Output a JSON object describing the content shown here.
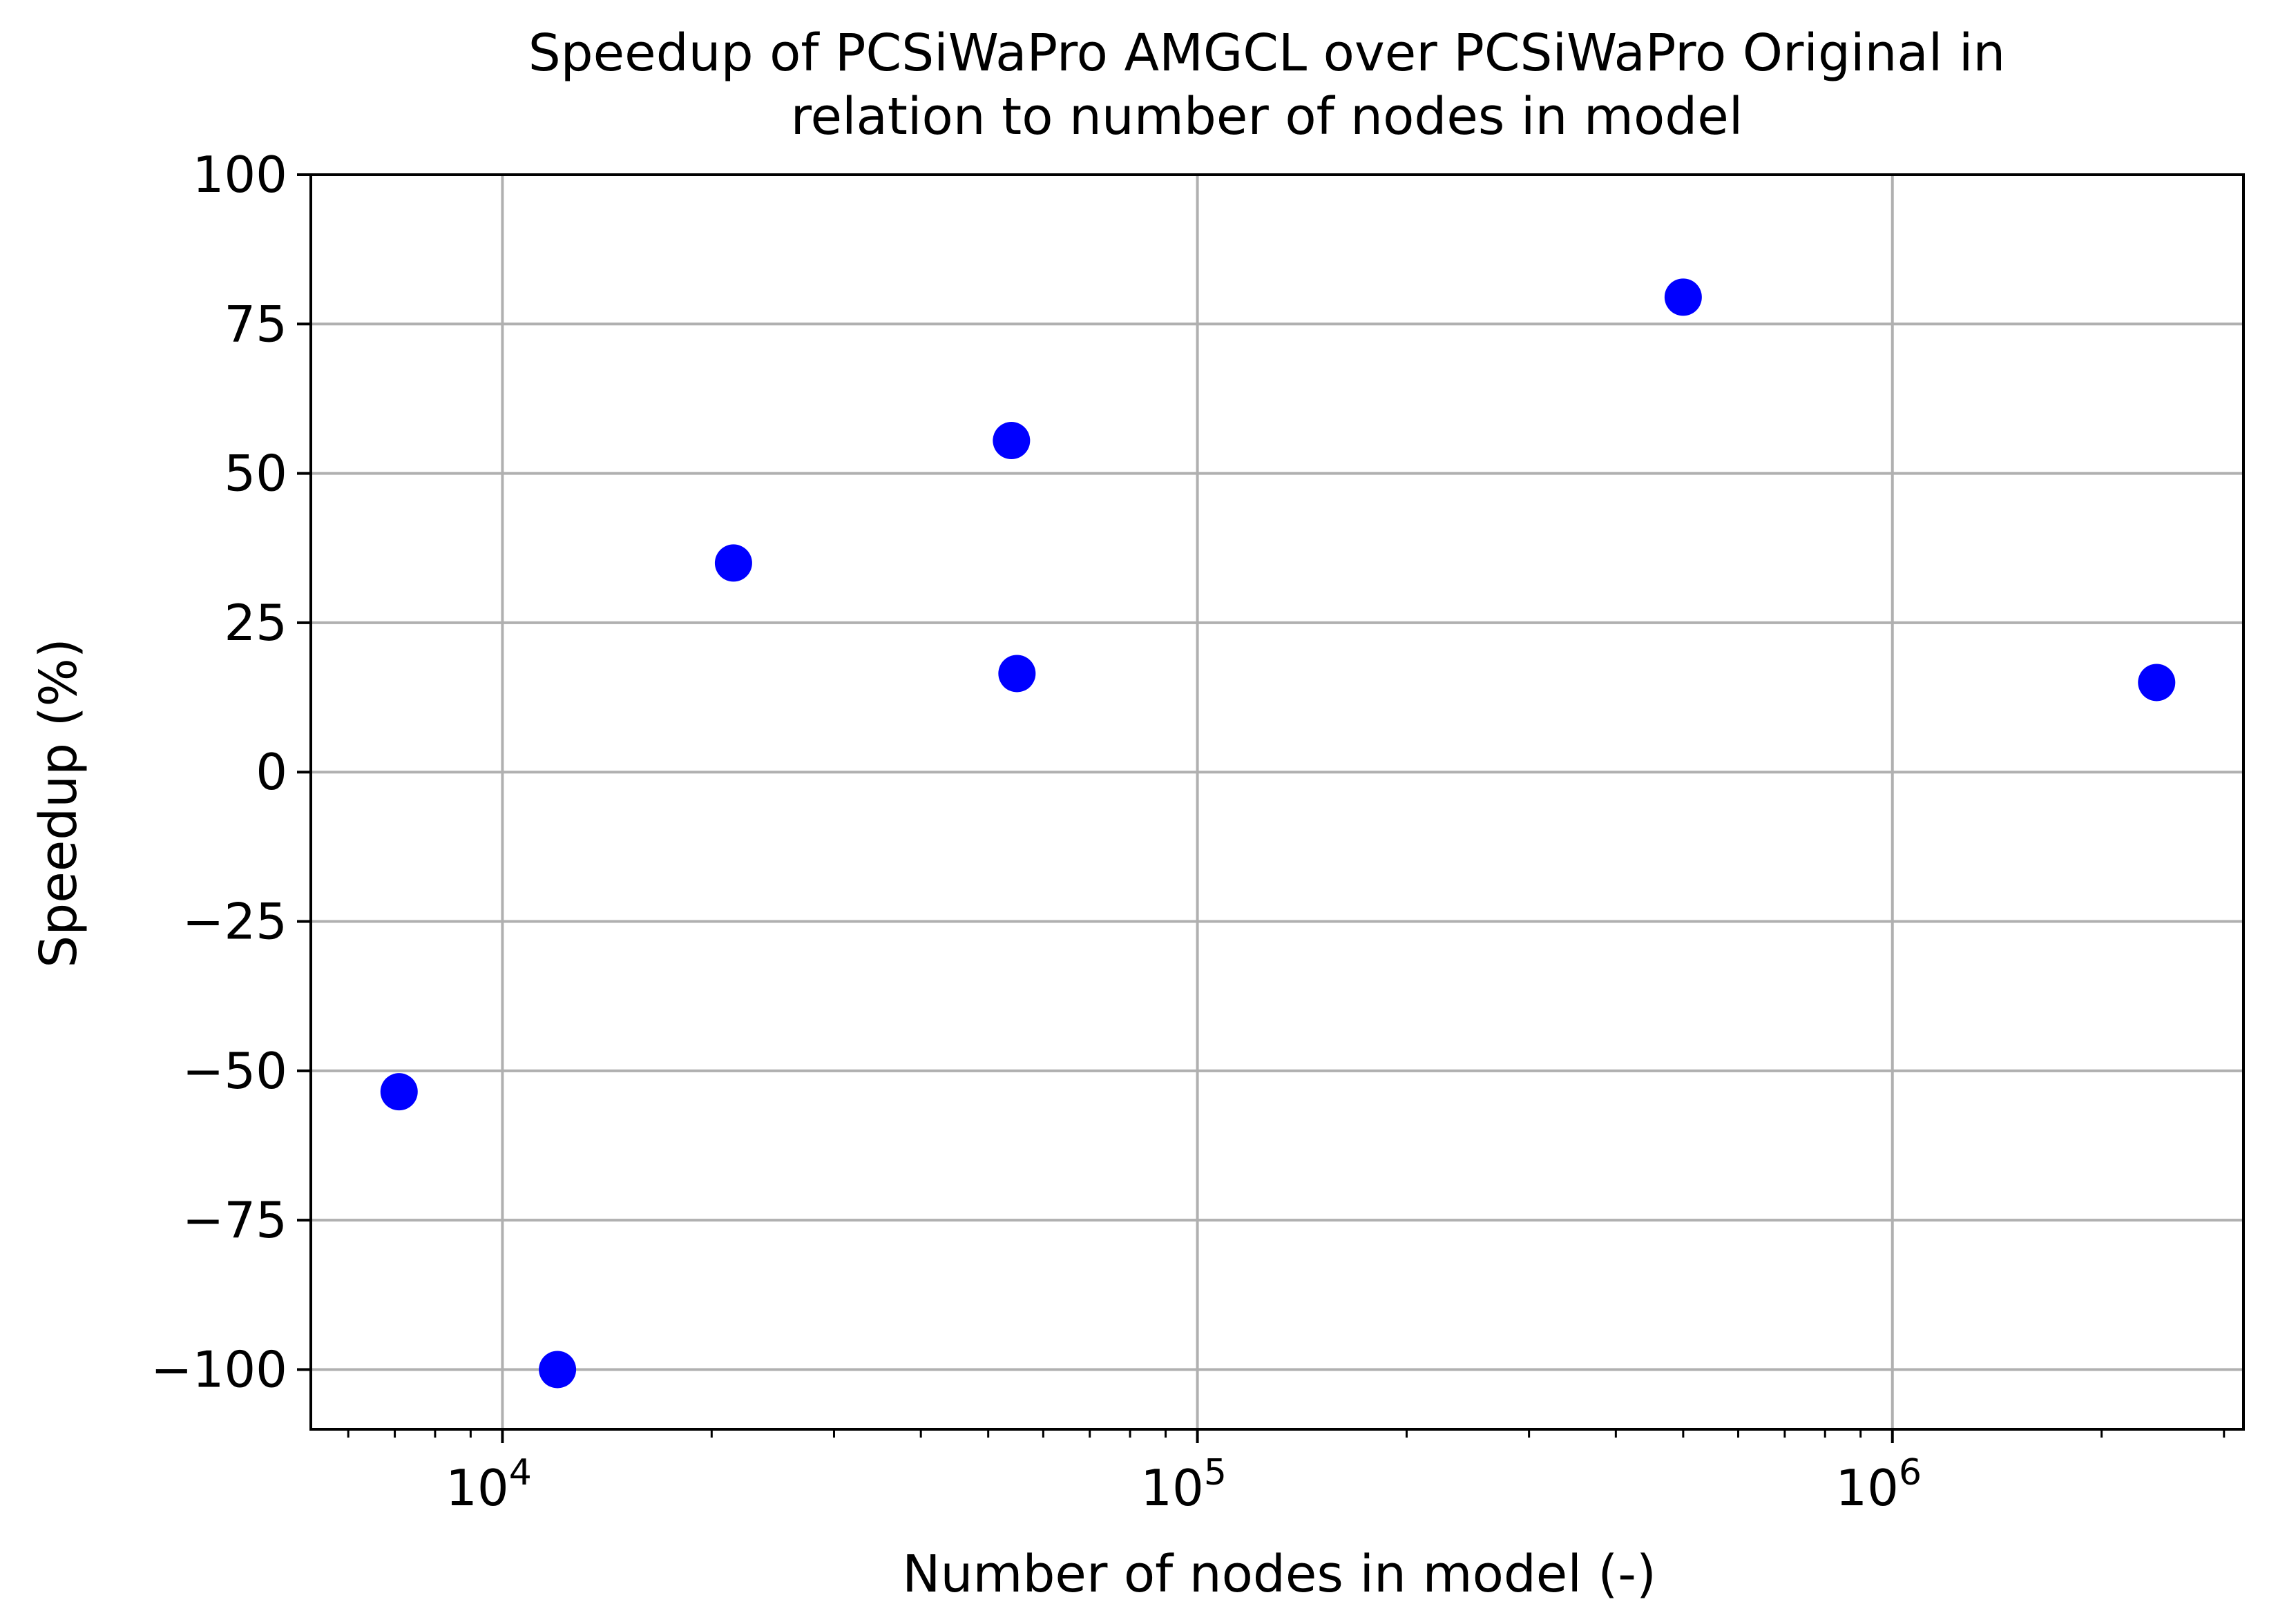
{
  "chart_data": {
    "type": "scatter",
    "title_lines": [
      "Speedup of PCSiWaPro AMGCL over PCSiWaPro Original in",
      "relation to number of nodes in model"
    ],
    "xlabel": "Number of nodes in model (-)",
    "ylabel": "Speedup (%)",
    "x_scale": "log",
    "xlim": [
      5300,
      3200000
    ],
    "ylim": [
      -110,
      100
    ],
    "x_major_ticks": [
      {
        "value": 10000,
        "base": "10",
        "exponent": "4"
      },
      {
        "value": 100000,
        "base": "10",
        "exponent": "5"
      },
      {
        "value": 1000000,
        "base": "10",
        "exponent": "6"
      }
    ],
    "y_ticks": [
      {
        "value": 100,
        "label": "100"
      },
      {
        "value": 75,
        "label": "75"
      },
      {
        "value": 50,
        "label": "50"
      },
      {
        "value": 25,
        "label": "25"
      },
      {
        "value": 0,
        "label": "0"
      },
      {
        "value": -25,
        "label": "−25"
      },
      {
        "value": -50,
        "label": "−50"
      },
      {
        "value": -75,
        "label": "−75"
      },
      {
        "value": -100,
        "label": "−100"
      }
    ],
    "grid": true,
    "marker_color": "#0000ff",
    "points": [
      {
        "x": 7100,
        "y": -53.5
      },
      {
        "x": 12000,
        "y": -100
      },
      {
        "x": 21500,
        "y": 35
      },
      {
        "x": 54000,
        "y": 55.5
      },
      {
        "x": 55000,
        "y": 16.5
      },
      {
        "x": 500000,
        "y": 79.5
      },
      {
        "x": 2400000,
        "y": 15
      }
    ]
  }
}
